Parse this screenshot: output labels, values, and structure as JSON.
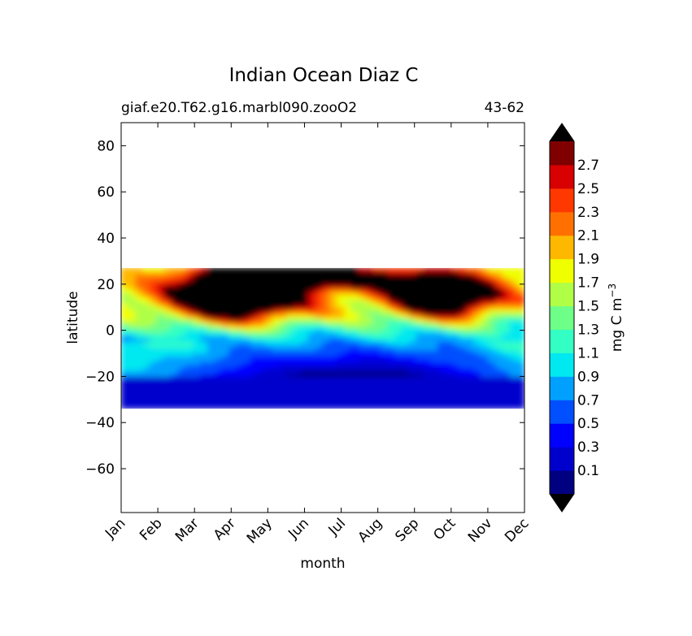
{
  "chart_data": {
    "type": "contour",
    "title": "Indian Ocean Diaz C",
    "subtitle_left": "giaf.e20.T62.g16.marbl090.zooO2",
    "subtitle_right": "43-62",
    "xlabel": "month",
    "ylabel": "latitude",
    "x_ticks": [
      "Jan",
      "Feb",
      "Mar",
      "Apr",
      "May",
      "Jun",
      "Jul",
      "Aug",
      "Sep",
      "Oct",
      "Nov",
      "Dec"
    ],
    "y_ticks": [
      80,
      60,
      40,
      20,
      0,
      -20,
      -40,
      -60
    ],
    "ylim": [
      -79,
      90
    ],
    "data_lat_range": [
      -34,
      27
    ],
    "colorbar": {
      "label": "mg C m",
      "label_sup": "−3",
      "levels": [
        0,
        0.2,
        0.4,
        0.6,
        0.8,
        1.0,
        1.2,
        1.4,
        1.6,
        1.8,
        2.0,
        2.2,
        2.4,
        2.6,
        2.8
      ],
      "tick_labels": [
        "0.1",
        "0.3",
        "0.5",
        "0.7",
        "0.9",
        "1.1",
        "1.3",
        "1.5",
        "1.7",
        "1.9",
        "2.1",
        "2.3",
        "2.5",
        "2.7"
      ],
      "colors": [
        "#000080",
        "#0000cd",
        "#0000ff",
        "#0050ff",
        "#00a0ff",
        "#00e8f0",
        "#33ffc4",
        "#6eff88",
        "#b0ff46",
        "#f0ff00",
        "#ffb800",
        "#ff7000",
        "#ff3800",
        "#d80000",
        "#800000"
      ],
      "extend_color": "#000000"
    },
    "features": [
      {
        "name": "spring-maximum",
        "months": [
          "Mar",
          "May"
        ],
        "lat_range": [
          5,
          25
        ],
        "value": ">2.8"
      },
      {
        "name": "autumn-maximum",
        "months": [
          "Sep",
          "Nov"
        ],
        "lat_range": [
          7,
          24
        ],
        "value": ">2.8"
      },
      {
        "name": "southern-minimum",
        "months": [
          "Jan",
          "Dec"
        ],
        "lat_range": [
          -34,
          -22
        ],
        "value": "0.2-0.4"
      }
    ]
  }
}
